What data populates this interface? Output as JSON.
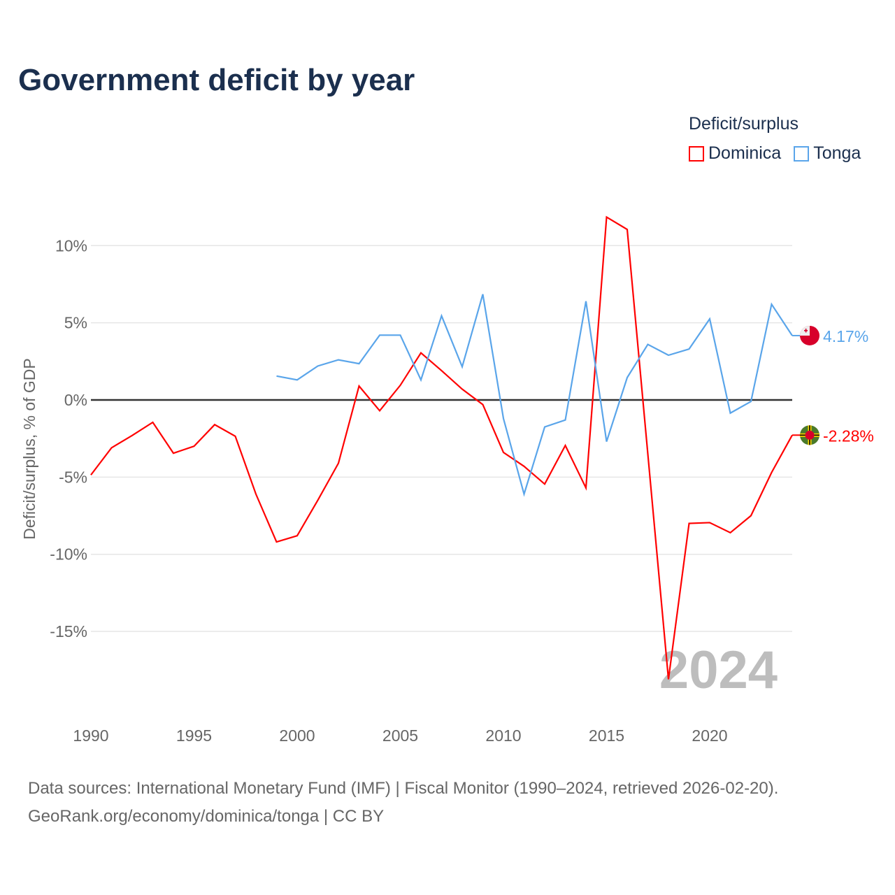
{
  "title": "Government deficit by year",
  "legend": {
    "title": "Deficit/surplus",
    "items": [
      {
        "label": "Dominica",
        "color": "#ff0000"
      },
      {
        "label": "Tonga",
        "color": "#5aa5ea"
      }
    ]
  },
  "year_watermark": "2024",
  "source": {
    "line1": "Data sources: International Monetary Fund (IMF) | Fiscal Monitor (1990–2024, retrieved 2026-02-20).",
    "line2": "GeoRank.org/economy/dominica/tonga | CC BY"
  },
  "chart_data": {
    "type": "line",
    "title": "Government deficit by year",
    "ylabel": "Deficit/surplus, % of GDP",
    "xlabel": "",
    "xlim": [
      1990,
      2024
    ],
    "ylim": [
      -19,
      12.5
    ],
    "x_ticks": [
      1990,
      1995,
      2000,
      2005,
      2010,
      2015,
      2020
    ],
    "y_ticks": [
      {
        "v": 10,
        "label": "10%"
      },
      {
        "v": 5,
        "label": "5%"
      },
      {
        "v": 0,
        "label": "0%"
      },
      {
        "v": -5,
        "label": "-5%"
      },
      {
        "v": -10,
        "label": "-10%"
      },
      {
        "v": -15,
        "label": "-15%"
      }
    ],
    "grid": true,
    "legend_position": "top-right",
    "series": [
      {
        "name": "Dominica",
        "color": "#ff0000",
        "end_label": "-2.28%",
        "flag": "dominica",
        "x": [
          1990,
          1991,
          1992,
          1993,
          1994,
          1995,
          1996,
          1997,
          1998,
          1999,
          2000,
          2001,
          2002,
          2003,
          2004,
          2005,
          2006,
          2007,
          2008,
          2009,
          2010,
          2011,
          2012,
          2013,
          2014,
          2015,
          2016,
          2017,
          2018,
          2019,
          2020,
          2021,
          2022,
          2023,
          2024
        ],
        "values": [
          -4.86,
          -3.1,
          -2.3,
          -1.45,
          -3.45,
          -3.0,
          -1.6,
          -2.35,
          -6.1,
          -9.2,
          -8.8,
          -6.5,
          -4.1,
          0.9,
          -0.7,
          0.95,
          3.05,
          1.9,
          0.7,
          -0.3,
          -3.4,
          -4.3,
          -5.45,
          -2.95,
          -5.7,
          11.85,
          11.05,
          -3.5,
          -18.1,
          -8.0,
          -7.95,
          -8.6,
          -7.5,
          -4.7,
          -2.28
        ]
      },
      {
        "name": "Tonga",
        "color": "#5aa5ea",
        "end_label": "4.17%",
        "flag": "tonga",
        "x": [
          1999,
          2000,
          2001,
          2002,
          2003,
          2004,
          2005,
          2006,
          2007,
          2008,
          2009,
          2010,
          2011,
          2012,
          2013,
          2014,
          2015,
          2016,
          2017,
          2018,
          2019,
          2020,
          2021,
          2022,
          2023,
          2024
        ],
        "values": [
          1.55,
          1.3,
          2.2,
          2.6,
          2.35,
          4.2,
          4.2,
          1.3,
          5.45,
          2.15,
          6.85,
          -1.2,
          -6.1,
          -1.75,
          -1.3,
          6.4,
          -2.7,
          1.45,
          3.6,
          2.9,
          3.3,
          5.25,
          -0.85,
          -0.1,
          6.2,
          4.17
        ]
      }
    ]
  }
}
